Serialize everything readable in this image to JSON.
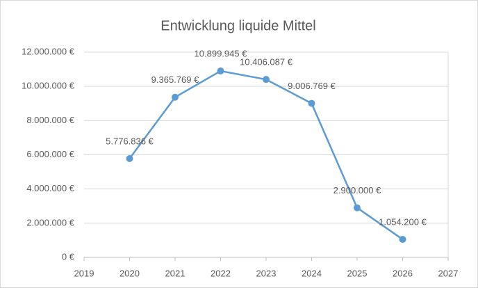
{
  "chart_data": {
    "type": "line",
    "title": "Entwicklung liquide Mittel",
    "x": [
      2020,
      2021,
      2022,
      2023,
      2024,
      2025,
      2026
    ],
    "series": [
      {
        "name": "Liquide Mittel",
        "color": "#5b9bd5",
        "values": [
          5776836,
          9365769,
          10899945,
          10406087,
          9006769,
          2900000,
          1054200
        ],
        "value_labels": [
          "5.776.836 €",
          "9.365.769 €",
          "10.899.945 €",
          "10.406.087 €",
          "9.006.769 €",
          "2.900.000 €",
          "1.054.200 €"
        ]
      }
    ],
    "xlim": [
      2019,
      2027
    ],
    "xticks": [
      2019,
      2020,
      2021,
      2022,
      2023,
      2024,
      2025,
      2026,
      2027
    ],
    "ylim": [
      0,
      12000000
    ],
    "yticks": [
      {
        "value": 0,
        "label": "0 €"
      },
      {
        "value": 2000000,
        "label": "2.000.000 €"
      },
      {
        "value": 4000000,
        "label": "4.000.000 €"
      },
      {
        "value": 6000000,
        "label": "6.000.000 €"
      },
      {
        "value": 8000000,
        "label": "8.000.000 €"
      },
      {
        "value": 10000000,
        "label": "10.000.000 €"
      },
      {
        "value": 12000000,
        "label": "12.000.000 €"
      }
    ],
    "grid": true
  }
}
